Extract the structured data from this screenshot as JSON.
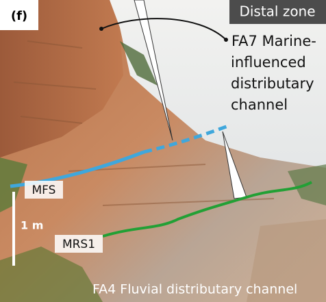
{
  "panel_label": "(f)",
  "zone_label": "Distal zone",
  "upper_facies": {
    "lines": [
      "FA7 Marine-",
      "influenced",
      "distributary",
      "channel"
    ]
  },
  "surfaces": {
    "upper": "MFS",
    "lower": "MRS1"
  },
  "scale_label": "1 m",
  "lower_facies": "FA4 Fluvial distributary channel"
}
